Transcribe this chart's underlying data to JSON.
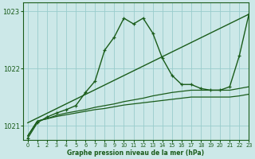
{
  "background_color": "#cce8e8",
  "plot_bg_color": "#cce8e8",
  "grid_color": "#99cccc",
  "line_color": "#1a5c1a",
  "xlabel": "Graphe pression niveau de la mer (hPa)",
  "xlim": [
    -0.5,
    23
  ],
  "ylim": [
    1020.75,
    1023.15
  ],
  "yticks": [
    1021,
    1022,
    1023
  ],
  "xticks": [
    0,
    1,
    2,
    3,
    4,
    5,
    6,
    7,
    8,
    9,
    10,
    11,
    12,
    13,
    14,
    15,
    16,
    17,
    18,
    19,
    20,
    21,
    22,
    23
  ],
  "series": [
    {
      "x": [
        0,
        23
      ],
      "y": [
        1021.05,
        1022.95
      ],
      "marker": false,
      "linewidth": 1.0,
      "linestyle": "-"
    },
    {
      "x": [
        0,
        1,
        2,
        3,
        4,
        5,
        6,
        7,
        8,
        9,
        10,
        11,
        12,
        13,
        14,
        15,
        16,
        17,
        18,
        19,
        20,
        21,
        22,
        23
      ],
      "y": [
        1020.78,
        1021.05,
        1021.15,
        1021.22,
        1021.28,
        1021.35,
        1021.58,
        1021.78,
        1022.32,
        1022.55,
        1022.88,
        1022.78,
        1022.88,
        1022.62,
        1022.18,
        1021.88,
        1021.72,
        1021.72,
        1021.65,
        1021.62,
        1021.62,
        1021.68,
        1022.22,
        1022.95
      ],
      "marker": true,
      "linewidth": 1.0,
      "linestyle": "-"
    },
    {
      "x": [
        0,
        1,
        2,
        3,
        4,
        5,
        6,
        7,
        8,
        9,
        10,
        11,
        12,
        13,
        14,
        15,
        16,
        17,
        18,
        19,
        20,
        21,
        22,
        23
      ],
      "y": [
        1020.82,
        1021.08,
        1021.12,
        1021.18,
        1021.22,
        1021.25,
        1021.28,
        1021.32,
        1021.35,
        1021.38,
        1021.42,
        1021.45,
        1021.48,
        1021.52,
        1021.55,
        1021.58,
        1021.6,
        1021.62,
        1021.62,
        1021.62,
        1021.62,
        1021.62,
        1021.65,
        1021.68
      ],
      "marker": false,
      "linewidth": 0.9,
      "linestyle": "-"
    },
    {
      "x": [
        0,
        1,
        2,
        3,
        4,
        5,
        6,
        7,
        8,
        9,
        10,
        11,
        12,
        13,
        14,
        15,
        16,
        17,
        18,
        19,
        20,
        21,
        22,
        23
      ],
      "y": [
        1020.82,
        1021.08,
        1021.12,
        1021.16,
        1021.19,
        1021.22,
        1021.25,
        1021.28,
        1021.3,
        1021.33,
        1021.36,
        1021.38,
        1021.4,
        1021.42,
        1021.44,
        1021.46,
        1021.48,
        1021.5,
        1021.5,
        1021.5,
        1021.5,
        1021.5,
        1021.52,
        1021.55
      ],
      "marker": false,
      "linewidth": 0.9,
      "linestyle": "-"
    }
  ]
}
